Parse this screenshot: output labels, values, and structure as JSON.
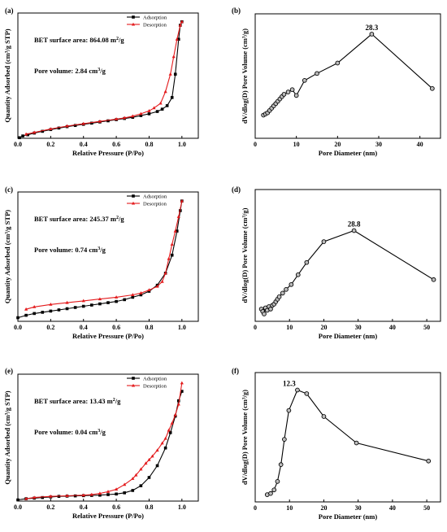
{
  "colors": {
    "adsorption": "#000000",
    "desorption": "#e31a1c",
    "axis": "#000000"
  },
  "chart_data": [
    {
      "type": "line",
      "panel": "(a)",
      "xlabel": "Relative Pressure (P/Po)",
      "ylabel": "Quantity Adsorbed (cm³/g STP)",
      "xlim": [
        0,
        1.1
      ],
      "ylim": [
        0,
        1
      ],
      "y_ticks_labeled": false,
      "xticks": [
        0.0,
        0.2,
        0.4,
        0.6,
        0.8,
        1.0
      ],
      "xtick_labels": [
        "0.0",
        "0.2",
        "0.4",
        "0.6",
        "0.8",
        "1.0"
      ],
      "legend": {
        "position": "top-right",
        "entries": [
          "Adsorption",
          "Desorption"
        ]
      },
      "annotations": [
        "BET surface area:  864.08 m²/g",
        "Pore volume:   2.84 cm³/g"
      ],
      "series": [
        {
          "name": "Adsorption",
          "color": "#000000",
          "marker": "square",
          "x": [
            0.01,
            0.03,
            0.06,
            0.1,
            0.15,
            0.2,
            0.25,
            0.3,
            0.35,
            0.4,
            0.45,
            0.5,
            0.55,
            0.6,
            0.65,
            0.7,
            0.75,
            0.8,
            0.85,
            0.88,
            0.91,
            0.94,
            0.96,
            0.98,
            0.99,
            1.0
          ],
          "y": [
            0.005,
            0.02,
            0.03,
            0.045,
            0.06,
            0.075,
            0.088,
            0.1,
            0.11,
            0.12,
            0.13,
            0.14,
            0.15,
            0.16,
            0.17,
            0.18,
            0.195,
            0.21,
            0.23,
            0.25,
            0.28,
            0.35,
            0.55,
            0.85,
            0.97,
            1.0
          ]
        },
        {
          "name": "Desorption",
          "color": "#e31a1c",
          "marker": "triangle",
          "x": [
            1.0,
            0.99,
            0.97,
            0.95,
            0.93,
            0.9,
            0.87,
            0.83,
            0.8,
            0.75,
            0.7,
            0.65,
            0.6,
            0.5,
            0.4,
            0.3,
            0.2,
            0.1,
            0.05
          ],
          "y": [
            1.0,
            0.97,
            0.85,
            0.7,
            0.55,
            0.4,
            0.3,
            0.26,
            0.235,
            0.21,
            0.19,
            0.175,
            0.165,
            0.145,
            0.125,
            0.105,
            0.08,
            0.05,
            0.035
          ]
        }
      ]
    },
    {
      "type": "line",
      "panel": "(b)",
      "xlabel": "Pore Diameter (nm)",
      "ylabel": "dV/dlog(D) Pore Volume (cm³/g)",
      "xlim": [
        0,
        45
      ],
      "ylim": [
        0,
        1
      ],
      "y_ticks_labeled": false,
      "xticks": [
        0,
        10,
        20,
        30,
        40
      ],
      "xtick_labels": [
        "0",
        "10",
        "20",
        "30",
        "40"
      ],
      "peak_label": "28.3",
      "series": [
        {
          "name": "",
          "color": "#000000",
          "marker": "circle",
          "x": [
            2.0,
            2.5,
            3.0,
            3.5,
            4.0,
            4.5,
            5.0,
            5.5,
            6.0,
            6.5,
            7.0,
            8.0,
            9.0,
            10.0,
            12.0,
            15.0,
            20.0,
            28.3,
            43.0
          ],
          "y": [
            0.2,
            0.21,
            0.22,
            0.24,
            0.26,
            0.28,
            0.3,
            0.32,
            0.34,
            0.36,
            0.38,
            0.4,
            0.42,
            0.37,
            0.5,
            0.56,
            0.65,
            0.9,
            0.43
          ]
        }
      ]
    },
    {
      "type": "line",
      "panel": "(c)",
      "xlabel": "Relative Pressure (P/Po)",
      "ylabel": "Quantity Adsorbed (cm³/g STP)",
      "xlim": [
        0,
        1.1
      ],
      "ylim": [
        0,
        1
      ],
      "y_ticks_labeled": false,
      "xticks": [
        0.0,
        0.2,
        0.4,
        0.6,
        0.8,
        1.0
      ],
      "xtick_labels": [
        "0.0",
        "0.2",
        "0.4",
        "0.6",
        "0.8",
        "1.0"
      ],
      "legend": {
        "position": "top-right",
        "entries": [
          "Adsorption",
          "Desorption"
        ]
      },
      "annotations": [
        "BET surface area:  245.37 m²/g",
        "Pore volume:   0.74 cm³/g"
      ],
      "series": [
        {
          "name": "Adsorption",
          "color": "#000000",
          "marker": "square",
          "x": [
            0.0,
            0.05,
            0.1,
            0.15,
            0.2,
            0.25,
            0.3,
            0.35,
            0.4,
            0.45,
            0.5,
            0.55,
            0.6,
            0.65,
            0.7,
            0.75,
            0.8,
            0.85,
            0.9,
            0.94,
            0.97,
            0.99,
            1.0
          ],
          "y": [
            0.03,
            0.05,
            0.065,
            0.075,
            0.085,
            0.095,
            0.105,
            0.115,
            0.125,
            0.135,
            0.145,
            0.155,
            0.165,
            0.18,
            0.2,
            0.22,
            0.25,
            0.3,
            0.4,
            0.55,
            0.75,
            0.92,
            1.0
          ]
        },
        {
          "name": "Desorption",
          "color": "#e31a1c",
          "marker": "triangle",
          "x": [
            1.0,
            0.98,
            0.96,
            0.94,
            0.92,
            0.9,
            0.88,
            0.85,
            0.8,
            0.75,
            0.7,
            0.6,
            0.5,
            0.4,
            0.3,
            0.2,
            0.1,
            0.05
          ],
          "y": [
            1.0,
            0.87,
            0.75,
            0.64,
            0.52,
            0.4,
            0.33,
            0.29,
            0.26,
            0.235,
            0.22,
            0.2,
            0.185,
            0.17,
            0.155,
            0.14,
            0.12,
            0.1
          ]
        }
      ]
    },
    {
      "type": "line",
      "panel": "(d)",
      "xlabel": "Pore Diameter (nm)",
      "ylabel": "dV/dlog(D) Pore Volume (cm³/g)",
      "xlim": [
        0,
        54
      ],
      "ylim": [
        0,
        1
      ],
      "y_ticks_labeled": false,
      "xticks": [
        0,
        10,
        20,
        30,
        40,
        50
      ],
      "xtick_labels": [
        "0",
        "10",
        "20",
        "30",
        "40",
        "50"
      ],
      "peak_label": "28.8",
      "series": [
        {
          "name": "",
          "color": "#000000",
          "marker": "circle",
          "x": [
            1.8,
            2.2,
            2.6,
            3.0,
            3.5,
            4.0,
            4.5,
            5.0,
            5.5,
            6.0,
            6.5,
            7.0,
            8.0,
            9.0,
            10.5,
            12.5,
            15.0,
            20.0,
            28.8,
            52.0
          ],
          "y": [
            0.1,
            0.08,
            0.06,
            0.11,
            0.09,
            0.12,
            0.1,
            0.13,
            0.14,
            0.16,
            0.18,
            0.2,
            0.23,
            0.26,
            0.3,
            0.38,
            0.48,
            0.65,
            0.74,
            0.34
          ]
        }
      ]
    },
    {
      "type": "line",
      "panel": "(e)",
      "xlabel": "Relative Pressure (P/Po)",
      "ylabel": "Quantity Adsorbed (cm³/g STP)",
      "xlim": [
        0,
        1.1
      ],
      "ylim": [
        0,
        1
      ],
      "y_ticks_labeled": false,
      "xticks": [
        0.0,
        0.2,
        0.4,
        0.6,
        0.8,
        1.0
      ],
      "xtick_labels": [
        "0.0",
        "0.2",
        "0.4",
        "0.6",
        "0.8",
        "1.0"
      ],
      "legend": {
        "position": "top-right",
        "entries": [
          "Adsorption",
          "Desorption"
        ]
      },
      "annotations": [
        "BET surface area:  13.43 m²/g",
        "Pore volume:   0.04 cm³/g"
      ],
      "series": [
        {
          "name": "Adsorption",
          "color": "#000000",
          "marker": "square",
          "x": [
            0.0,
            0.05,
            0.1,
            0.15,
            0.2,
            0.25,
            0.3,
            0.35,
            0.4,
            0.45,
            0.5,
            0.55,
            0.6,
            0.65,
            0.7,
            0.75,
            0.8,
            0.85,
            0.9,
            0.93,
            0.96,
            0.98,
            1.0
          ],
          "y": [
            0.01,
            0.02,
            0.025,
            0.03,
            0.035,
            0.04,
            0.042,
            0.044,
            0.046,
            0.048,
            0.05,
            0.055,
            0.06,
            0.07,
            0.09,
            0.13,
            0.2,
            0.3,
            0.45,
            0.58,
            0.72,
            0.85,
            0.93
          ]
        },
        {
          "name": "Desorption",
          "color": "#e31a1c",
          "marker": "triangle",
          "x": [
            1.0,
            0.98,
            0.96,
            0.94,
            0.92,
            0.9,
            0.88,
            0.85,
            0.82,
            0.8,
            0.78,
            0.75,
            0.72,
            0.7,
            0.65,
            0.6,
            0.55,
            0.5,
            0.45,
            0.4,
            0.3,
            0.2,
            0.1,
            0.05
          ],
          "y": [
            1.0,
            0.82,
            0.73,
            0.66,
            0.6,
            0.53,
            0.49,
            0.43,
            0.38,
            0.35,
            0.32,
            0.27,
            0.22,
            0.19,
            0.14,
            0.1,
            0.08,
            0.065,
            0.055,
            0.05,
            0.045,
            0.04,
            0.03,
            0.02
          ]
        }
      ]
    },
    {
      "type": "line",
      "panel": "(f)",
      "xlabel": "Pore Diameter (nm)",
      "ylabel": "dV/dlog(D) Pore Volume (cm³/g)",
      "xlim": [
        0,
        54
      ],
      "ylim": [
        0,
        1
      ],
      "y_ticks_labeled": false,
      "xticks": [
        0,
        10,
        20,
        30,
        40,
        50
      ],
      "xtick_labels": [
        "0",
        "10",
        "20",
        "30",
        "40",
        "50"
      ],
      "peak_label": "12.3",
      "series": [
        {
          "name": "",
          "color": "#000000",
          "marker": "circle",
          "x": [
            3.5,
            4.5,
            5.5,
            6.5,
            7.5,
            8.5,
            9.8,
            12.3,
            15.0,
            20.0,
            29.5,
            50.5
          ],
          "y": [
            0.06,
            0.07,
            0.1,
            0.17,
            0.31,
            0.52,
            0.76,
            0.93,
            0.9,
            0.71,
            0.49,
            0.34
          ]
        }
      ]
    }
  ]
}
